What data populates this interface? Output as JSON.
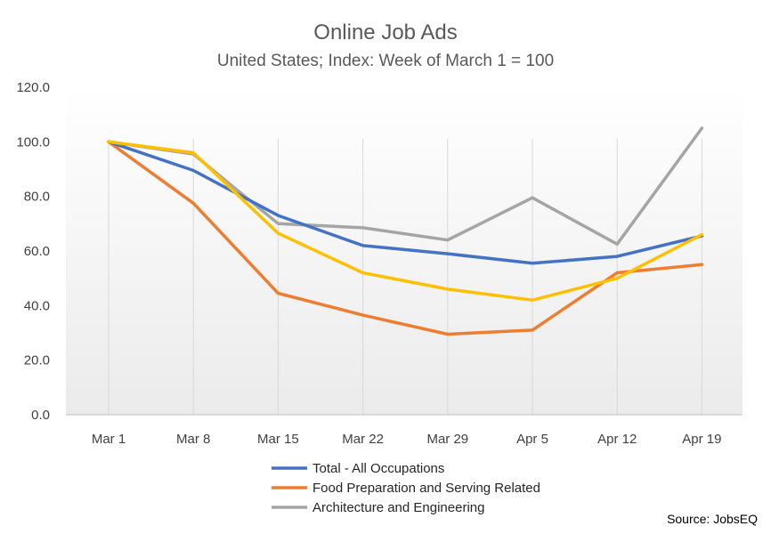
{
  "chart_data": {
    "type": "line",
    "title": "Online Job Ads",
    "subtitle": "United States; Index: Week of March 1 = 100",
    "categories": [
      "Mar 1",
      "Mar 8",
      "Mar 15",
      "Mar 22",
      "Mar 29",
      "Apr 5",
      "Apr 12",
      "Apr 19"
    ],
    "ylim": [
      0,
      120
    ],
    "yticks": [
      "0.0",
      "20.0",
      "40.0",
      "60.0",
      "80.0",
      "100.0",
      "120.0"
    ],
    "grid": "vertical category lines",
    "legend_position": "bottom",
    "series": [
      {
        "name": "Total - All Occupations",
        "color": "#4472C4",
        "values": [
          100,
          89.5,
          73,
          62,
          59,
          55.5,
          58,
          65.5
        ],
        "in_legend": true
      },
      {
        "name": "Food Preparation and Serving Related",
        "color": "#ED7D31",
        "values": [
          100,
          77.5,
          44.5,
          36.5,
          29.5,
          31,
          52,
          55
        ],
        "in_legend": true
      },
      {
        "name": "Architecture and Engineering",
        "color": "#A5A5A5",
        "values": [
          100,
          95.5,
          70,
          68.5,
          64,
          79.5,
          62.5,
          105
        ],
        "in_legend": true
      },
      {
        "color": "#FFC000",
        "values": [
          100,
          96,
          66.5,
          52,
          46,
          42,
          50,
          66
        ],
        "in_legend": false
      }
    ],
    "source": "Source: JobsEQ"
  }
}
